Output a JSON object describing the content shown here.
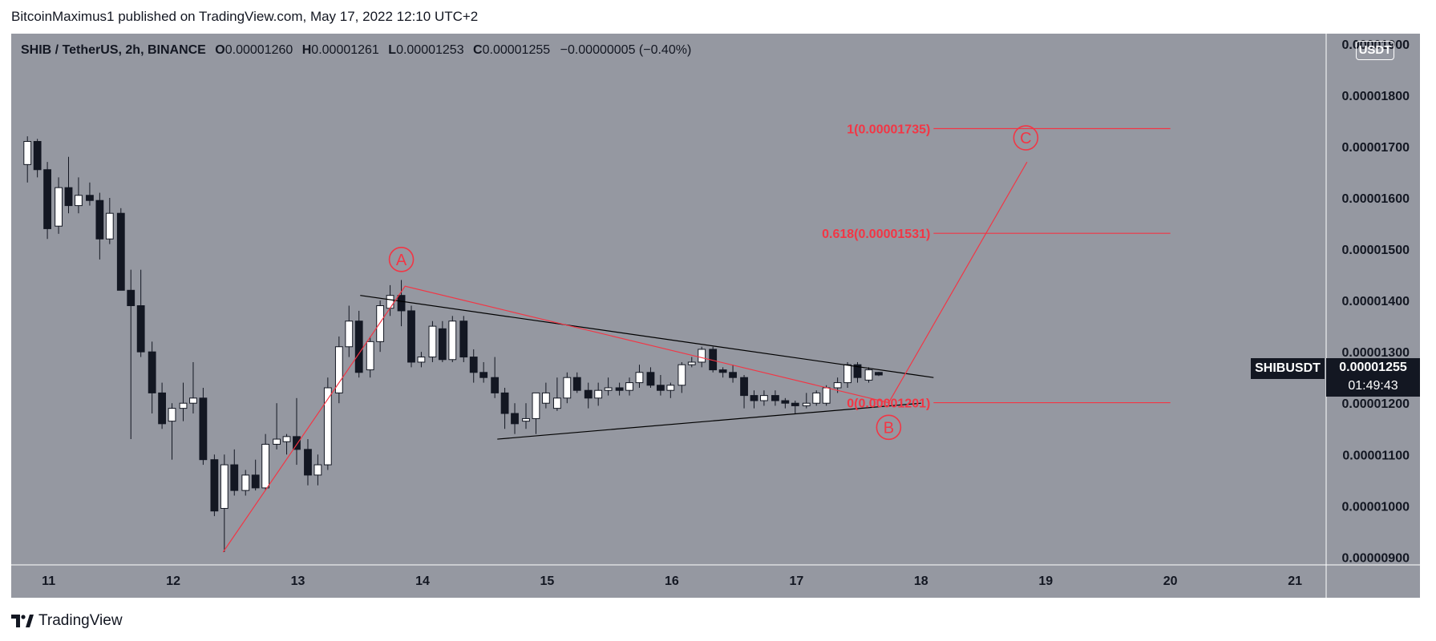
{
  "header": {
    "attribution": "BitcoinMaximus1 published on TradingView.com, May 17, 2022 12:10 UTC+2"
  },
  "legend": {
    "symbol": "SHIB / TetherUS, 2h, BINANCE",
    "o_key": "O",
    "o_val": "0.00001260",
    "h_key": "H",
    "h_val": "0.00001261",
    "l_key": "L",
    "l_val": "0.00001253",
    "c_key": "C",
    "c_val": "0.00001255",
    "change": "−0.00000005 (−0.40%)"
  },
  "currency": "USDT",
  "price_tag": {
    "symbol": "SHIBUSDT",
    "price": "0.00001255",
    "countdown": "01:49:43"
  },
  "footer": {
    "brand": "TradingView"
  },
  "colors": {
    "plot_bg": "#9598a1",
    "up_candle": "#ffffff",
    "down_candle": "#131722",
    "annotation_red": "#f23645",
    "trendline": "#000000",
    "axis_text": "#131722"
  },
  "chart_data": {
    "type": "candlestick",
    "x_ticks": [
      "11",
      "12",
      "13",
      "14",
      "15",
      "16",
      "17",
      "18",
      "19",
      "20",
      "21"
    ],
    "y_ticks": [
      "0.00000900",
      "0.00001000",
      "0.00001100",
      "0.00001200",
      "0.00001300",
      "0.00001400",
      "0.00001500",
      "0.00001600",
      "0.00001700",
      "0.00001800",
      "0.00001900"
    ],
    "ylim": [
      8.85e-06,
      1.92e-05
    ],
    "xlim": [
      10.7,
      21.25
    ],
    "candles": [
      [
        10.83,
        1.665e-05,
        1.72e-05,
        1.63e-05,
        1.71e-05
      ],
      [
        10.91,
        1.71e-05,
        1.715e-05,
        1.64e-05,
        1.655e-05
      ],
      [
        10.99,
        1.655e-05,
        1.67e-05,
        1.52e-05,
        1.54e-05
      ],
      [
        11.08,
        1.545e-05,
        1.64e-05,
        1.53e-05,
        1.62e-05
      ],
      [
        11.16,
        1.62e-05,
        1.68e-05,
        1.57e-05,
        1.585e-05
      ],
      [
        11.24,
        1.585e-05,
        1.64e-05,
        1.57e-05,
        1.605e-05
      ],
      [
        11.33,
        1.605e-05,
        1.63e-05,
        1.585e-05,
        1.595e-05
      ],
      [
        11.41,
        1.595e-05,
        1.61e-05,
        1.48e-05,
        1.52e-05
      ],
      [
        11.49,
        1.52e-05,
        1.6e-05,
        1.51e-05,
        1.57e-05
      ],
      [
        11.58,
        1.57e-05,
        1.58e-05,
        1.42e-05,
        1.42e-05
      ],
      [
        11.66,
        1.42e-05,
        1.46e-05,
        1.13e-05,
        1.39e-05
      ],
      [
        11.74,
        1.39e-05,
        1.46e-05,
        1.29e-05,
        1.3e-05
      ],
      [
        11.83,
        1.3e-05,
        1.32e-05,
        1.18e-05,
        1.22e-05
      ],
      [
        11.91,
        1.22e-05,
        1.24e-05,
        1.15e-05,
        1.16e-05
      ],
      [
        11.99,
        1.165e-05,
        1.2e-05,
        1.09e-05,
        1.19e-05
      ],
      [
        12.08,
        1.19e-05,
        1.24e-05,
        1.165e-05,
        1.2e-05
      ],
      [
        12.16,
        1.2e-05,
        1.28e-05,
        1.18e-05,
        1.21e-05
      ],
      [
        12.24,
        1.21e-05,
        1.23e-05,
        1.08e-05,
        1.09e-05
      ],
      [
        12.33,
        1.09e-05,
        1.1e-05,
        9.8e-06,
        9.9e-06
      ],
      [
        12.41,
        9.95e-06,
        1.1e-05,
        9.1e-06,
        1.08e-05
      ],
      [
        12.49,
        1.08e-05,
        1.11e-05,
        1.02e-05,
        1.03e-05
      ],
      [
        12.58,
        1.03e-05,
        1.07e-05,
        1.02e-05,
        1.06e-05
      ],
      [
        12.66,
        1.06e-05,
        1.09e-05,
        1.03e-05,
        1.035e-05
      ],
      [
        12.74,
        1.035e-05,
        1.14e-05,
        1.03e-05,
        1.12e-05
      ],
      [
        12.83,
        1.12e-05,
        1.2e-05,
        1.11e-05,
        1.13e-05
      ],
      [
        12.91,
        1.125e-05,
        1.14e-05,
        1.1e-05,
        1.135e-05
      ],
      [
        12.99,
        1.135e-05,
        1.21e-05,
        1.08e-05,
        1.11e-05
      ],
      [
        13.08,
        1.11e-05,
        1.13e-05,
        1.04e-05,
        1.06e-05
      ],
      [
        13.16,
        1.06e-05,
        1.1e-05,
        1.04e-05,
        1.08e-05
      ],
      [
        13.24,
        1.08e-05,
        1.25e-05,
        1.07e-05,
        1.23e-05
      ],
      [
        13.33,
        1.22e-05,
        1.33e-05,
        1.2e-05,
        1.31e-05
      ],
      [
        13.41,
        1.31e-05,
        1.39e-05,
        1.29e-05,
        1.36e-05
      ],
      [
        13.49,
        1.36e-05,
        1.38e-05,
        1.25e-05,
        1.26e-05
      ],
      [
        13.58,
        1.265e-05,
        1.33e-05,
        1.25e-05,
        1.32e-05
      ],
      [
        13.66,
        1.32e-05,
        1.4e-05,
        1.3e-05,
        1.39e-05
      ],
      [
        13.74,
        1.385e-05,
        1.43e-05,
        1.37e-05,
        1.41e-05
      ],
      [
        13.83,
        1.41e-05,
        1.44e-05,
        1.35e-05,
        1.38e-05
      ],
      [
        13.91,
        1.38e-05,
        1.39e-05,
        1.27e-05,
        1.28e-05
      ],
      [
        13.99,
        1.28e-05,
        1.3e-05,
        1.27e-05,
        1.29e-05
      ],
      [
        14.08,
        1.29e-05,
        1.36e-05,
        1.28e-05,
        1.35e-05
      ],
      [
        14.16,
        1.345e-05,
        1.36e-05,
        1.28e-05,
        1.285e-05
      ],
      [
        14.24,
        1.285e-05,
        1.37e-05,
        1.28e-05,
        1.36e-05
      ],
      [
        14.33,
        1.36e-05,
        1.37e-05,
        1.28e-05,
        1.29e-05
      ],
      [
        14.41,
        1.29e-05,
        1.305e-05,
        1.24e-05,
        1.26e-05
      ],
      [
        14.49,
        1.26e-05,
        1.28e-05,
        1.24e-05,
        1.25e-05
      ],
      [
        14.58,
        1.25e-05,
        1.29e-05,
        1.21e-05,
        1.22e-05
      ],
      [
        14.66,
        1.22e-05,
        1.23e-05,
        1.15e-05,
        1.18e-05
      ],
      [
        14.74,
        1.18e-05,
        1.2e-05,
        1.14e-05,
        1.16e-05
      ],
      [
        14.83,
        1.165e-05,
        1.2e-05,
        1.15e-05,
        1.17e-05
      ],
      [
        14.91,
        1.17e-05,
        1.22e-05,
        1.14e-05,
        1.22e-05
      ],
      [
        14.99,
        1.2e-05,
        1.24e-05,
        1.19e-05,
        1.22e-05
      ],
      [
        15.08,
        1.19e-05,
        1.25e-05,
        1.185e-05,
        1.21e-05
      ],
      [
        15.16,
        1.21e-05,
        1.26e-05,
        1.2e-05,
        1.25e-05
      ],
      [
        15.24,
        1.25e-05,
        1.26e-05,
        1.22e-05,
        1.225e-05
      ],
      [
        15.33,
        1.225e-05,
        1.24e-05,
        1.19e-05,
        1.21e-05
      ],
      [
        15.41,
        1.21e-05,
        1.24e-05,
        1.195e-05,
        1.225e-05
      ],
      [
        15.49,
        1.225e-05,
        1.25e-05,
        1.215e-05,
        1.23e-05
      ],
      [
        15.58,
        1.23e-05,
        1.24e-05,
        1.215e-05,
        1.225e-05
      ],
      [
        15.66,
        1.225e-05,
        1.25e-05,
        1.215e-05,
        1.24e-05
      ],
      [
        15.74,
        1.24e-05,
        1.275e-05,
        1.23e-05,
        1.26e-05
      ],
      [
        15.83,
        1.26e-05,
        1.27e-05,
        1.23e-05,
        1.235e-05
      ],
      [
        15.91,
        1.235e-05,
        1.255e-05,
        1.215e-05,
        1.225e-05
      ],
      [
        15.99,
        1.225e-05,
        1.24e-05,
        1.21e-05,
        1.235e-05
      ],
      [
        16.08,
        1.235e-05,
        1.28e-05,
        1.22e-05,
        1.275e-05
      ],
      [
        16.16,
        1.275e-05,
        1.29e-05,
        1.27e-05,
        1.28e-05
      ],
      [
        16.24,
        1.28e-05,
        1.31e-05,
        1.27e-05,
        1.305e-05
      ],
      [
        16.33,
        1.305e-05,
        1.31e-05,
        1.26e-05,
        1.265e-05
      ],
      [
        16.41,
        1.265e-05,
        1.27e-05,
        1.25e-05,
        1.26e-05
      ],
      [
        16.49,
        1.26e-05,
        1.275e-05,
        1.24e-05,
        1.25e-05
      ],
      [
        16.58,
        1.25e-05,
        1.255e-05,
        1.19e-05,
        1.215e-05
      ],
      [
        16.66,
        1.215e-05,
        1.225e-05,
        1.19e-05,
        1.205e-05
      ],
      [
        16.74,
        1.205e-05,
        1.225e-05,
        1.195e-05,
        1.215e-05
      ],
      [
        16.83,
        1.215e-05,
        1.225e-05,
        1.195e-05,
        1.205e-05
      ],
      [
        16.91,
        1.205e-05,
        1.21e-05,
        1.19e-05,
        1.2e-05
      ],
      [
        16.99,
        1.2e-05,
        1.205e-05,
        1.18e-05,
        1.195e-05
      ],
      [
        17.08,
        1.195e-05,
        1.22e-05,
        1.19e-05,
        1.2e-05
      ],
      [
        17.16,
        1.2e-05,
        1.225e-05,
        1.195e-05,
        1.22e-05
      ],
      [
        17.24,
        1.2e-05,
        1.235e-05,
        1.195e-05,
        1.23e-05
      ],
      [
        17.33,
        1.23e-05,
        1.25e-05,
        1.22e-05,
        1.24e-05
      ],
      [
        17.41,
        1.24e-05,
        1.28e-05,
        1.23e-05,
        1.275e-05
      ],
      [
        17.49,
        1.275e-05,
        1.28e-05,
        1.24e-05,
        1.25e-05
      ],
      [
        17.58,
        1.245e-05,
        1.27e-05,
        1.24e-05,
        1.265e-05
      ],
      [
        17.66,
        1.26e-05,
        1.261e-05,
        1.253e-05,
        1.255e-05
      ]
    ],
    "wave_path": [
      [
        12.4,
        9.1e-06
      ],
      [
        13.86,
        1.428e-05
      ],
      [
        17.74,
        1.201e-05
      ],
      [
        18.85,
        1.67e-05
      ]
    ],
    "wave_labels": [
      {
        "label": "A",
        "x": 13.83,
        "y": 1.48e-05
      },
      {
        "label": "B",
        "x": 17.74,
        "y": 1.153e-05
      },
      {
        "label": "C",
        "x": 18.84,
        "y": 1.717e-05
      }
    ],
    "fib_levels": [
      {
        "label": "1(0.00001735)",
        "value": 1.735e-05
      },
      {
        "label": "0.618(0.00001531)",
        "value": 1.531e-05
      },
      {
        "label": "0(0.00001201)",
        "value": 1.201e-05
      }
    ],
    "fib_x_range": [
      18.1,
      20.0
    ],
    "trendlines": [
      [
        [
          13.5,
          1.41e-05
        ],
        [
          18.1,
          1.25e-05
        ]
      ],
      [
        [
          14.6,
          1.13e-05
        ],
        [
          18.0,
          1.2e-05
        ]
      ]
    ]
  }
}
